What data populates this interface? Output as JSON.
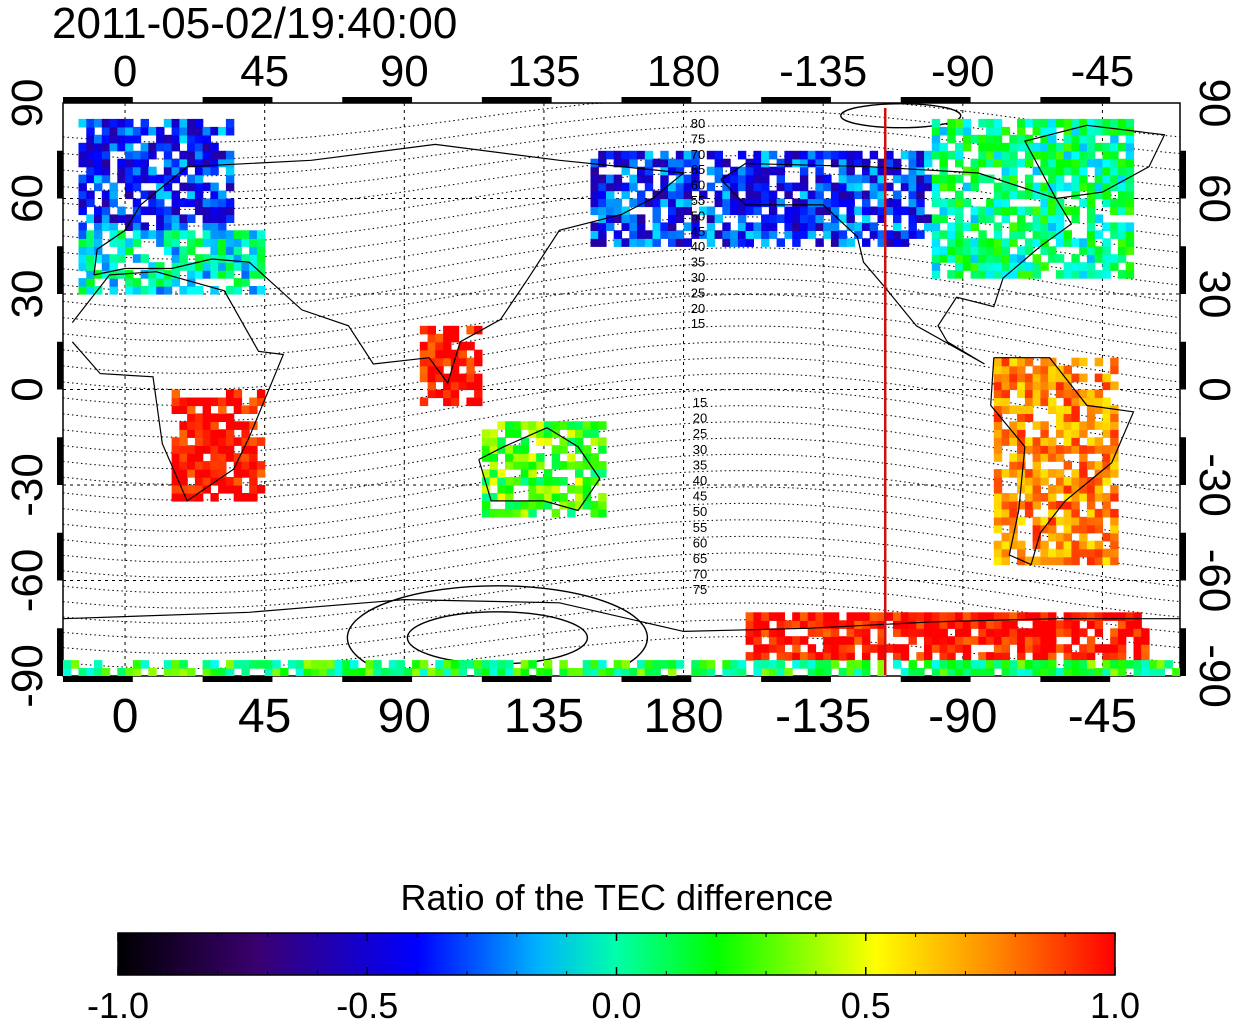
{
  "timestamp": "2011-05-02/19:40:00",
  "colorbar_title": "Ratio of the TEC difference",
  "x_ticks_top": [
    "0",
    "45",
    "90",
    "135",
    "180",
    "-135",
    "-90",
    "-45"
  ],
  "x_ticks_bottom": [
    "0",
    "45",
    "90",
    "135",
    "180",
    "-135",
    "-90",
    "-45"
  ],
  "y_ticks_left": [
    "90",
    "60",
    "30",
    "0",
    "-30",
    "-60",
    "-90"
  ],
  "y_ticks_right": [
    "90",
    "60",
    "30",
    "0",
    "-30",
    "-60",
    "-90"
  ],
  "contour_labels_north": [
    "80",
    "75",
    "70",
    "65",
    "60",
    "55",
    "50",
    "45",
    "40",
    "35",
    "30",
    "25",
    "20",
    "15"
  ],
  "contour_labels_south": [
    "15",
    "20",
    "25",
    "30",
    "35",
    "40",
    "45",
    "50",
    "55",
    "60",
    "65",
    "70",
    "75"
  ],
  "colorbar_ticks": [
    "-1.0",
    "-0.5",
    "0.0",
    "0.5",
    "1.0"
  ],
  "marker_longitude": -115,
  "colors": {
    "marker_line": "#d01010",
    "colorscale": [
      "#000000",
      "#3a0070",
      "#0000ff",
      "#00ffff",
      "#00ff00",
      "#ffff00",
      "#ff8800",
      "#ff0000"
    ]
  },
  "chart_data": {
    "type": "heatmap",
    "title": "2011-05-02/19:40:00",
    "xlim": [
      -20,
      340
    ],
    "ylim": [
      -90,
      90
    ],
    "colorbar": {
      "label": "Ratio of the TEC difference",
      "range": [
        -1.0,
        1.0
      ],
      "ticks": [
        -1.0,
        -0.5,
        0.0,
        0.5,
        1.0
      ]
    },
    "grid": true,
    "regions": [
      {
        "lon": [
          -15,
          35
        ],
        "lat": [
          50,
          85
        ],
        "value": -0.4
      },
      {
        "lon": [
          -15,
          45
        ],
        "lat": [
          30,
          50
        ],
        "value": -0.1
      },
      {
        "lon": [
          150,
          260
        ],
        "lat": [
          45,
          75
        ],
        "value": -0.4
      },
      {
        "lon": [
          260,
          325
        ],
        "lat": [
          35,
          85
        ],
        "value": 0.0
      },
      {
        "lon": [
          280,
          320
        ],
        "lat": [
          -55,
          10
        ],
        "value": 0.7
      },
      {
        "lon": [
          15,
          45
        ],
        "lat": [
          -35,
          0
        ],
        "value": 1.0
      },
      {
        "lon": [
          95,
          115
        ],
        "lat": [
          -5,
          20
        ],
        "value": 1.0
      },
      {
        "lon": [
          115,
          155
        ],
        "lat": [
          -40,
          -10
        ],
        "value": 0.2
      },
      {
        "lon": [
          200,
          330
        ],
        "lat": [
          -85,
          -70
        ],
        "value": 1.0
      },
      {
        "lon": [
          -20,
          340
        ],
        "lat": [
          -90,
          -85
        ],
        "value": 0.1
      }
    ]
  }
}
